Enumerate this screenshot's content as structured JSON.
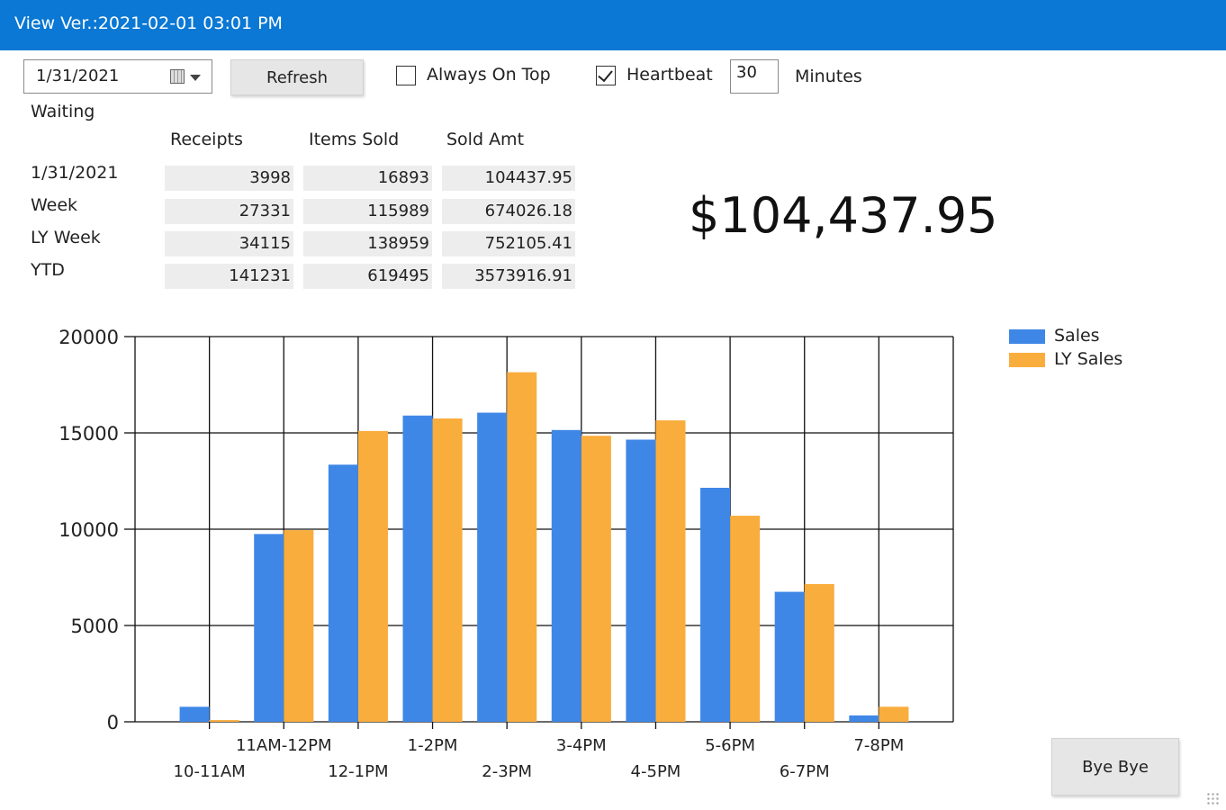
{
  "window": {
    "title": "View Ver.:2021-02-01 03:01 PM"
  },
  "toolbar": {
    "date_value": "1/31/2021",
    "refresh_label": "Refresh",
    "always_on_top_label": "Always On Top",
    "always_on_top_checked": false,
    "heartbeat_label": "Heartbeat",
    "heartbeat_checked": true,
    "interval_value": "30",
    "interval_unit": "Minutes"
  },
  "status_text": "Waiting",
  "summary": {
    "columns": [
      "Receipts",
      "Items Sold",
      "Sold Amt"
    ],
    "rows": [
      {
        "label": "1/31/2021",
        "receipts": "3998",
        "items_sold": "16893",
        "sold_amt": "104437.95"
      },
      {
        "label": "Week",
        "receipts": "27331",
        "items_sold": "115989",
        "sold_amt": "674026.18"
      },
      {
        "label": "LY Week",
        "receipts": "34115",
        "items_sold": "138959",
        "sold_amt": "752105.41"
      },
      {
        "label": "YTD",
        "receipts": "141231",
        "items_sold": "619495",
        "sold_amt": "3573916.91"
      }
    ]
  },
  "total_sales_display": "$104,437.95",
  "chart_data": {
    "type": "bar",
    "categories": [
      "10-11AM",
      "11AM-12PM",
      "12-1PM",
      "1-2PM",
      "2-3PM",
      "3-4PM",
      "4-5PM",
      "5-6PM",
      "6-7PM",
      "7-8PM"
    ],
    "series": [
      {
        "name": "Sales",
        "color": "#3f87e6",
        "values": [
          780,
          9750,
          13350,
          15900,
          16050,
          15150,
          14650,
          12150,
          6750,
          330
        ]
      },
      {
        "name": "LY Sales",
        "color": "#f9ad3d",
        "values": [
          90,
          9950,
          15100,
          15750,
          18150,
          14850,
          15650,
          10700,
          7150,
          780
        ]
      }
    ],
    "y_ticks": [
      "20000",
      "15000",
      "10000",
      "5000",
      "0"
    ],
    "ylim": [
      0,
      20000
    ],
    "grid": true,
    "legend_position": "top-right"
  },
  "footer": {
    "close_label": "Bye Bye"
  }
}
